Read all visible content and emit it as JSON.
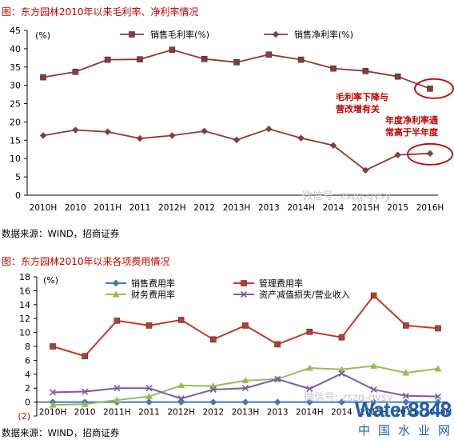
{
  "chart1": {
    "title": "图：东方园林2010年以来毛利率、净利率情况",
    "source": "数据来源：WIND，招商证券",
    "unit_label": "(%)",
    "annotation_1": [
      "毛利率下降与",
      "营改增有关"
    ],
    "annotation_2": [
      "年度净利率通",
      "常高于半年度"
    ],
    "watermark": "微信号: zszq-gysy",
    "colors": {
      "gross": "#8b3a3a",
      "net": "#8b3a3a",
      "annotation": "#c00000",
      "axis": "#000000"
    }
  },
  "chart2": {
    "title": "图：东方园林2010年以来各项费用情况",
    "source": "数据来源：WIND，招商证券",
    "unit_label": "(%)",
    "watermark": "微信号: zszq-gysy",
    "colors": {
      "sales": "#3a7ac9",
      "mgmt": "#c0392b",
      "fin": "#9bbb59",
      "impair": "#7b5aa6"
    }
  },
  "chart_data": [
    {
      "type": "line",
      "title": "东方园林2010年以来毛利率、净利率情况",
      "categories": [
        "2010H",
        "2010",
        "2011H",
        "2011",
        "2012H",
        "2012",
        "2013H",
        "2013",
        "2014H",
        "2014",
        "2015H",
        "2015",
        "2016H"
      ],
      "series": [
        {
          "name": "销售毛利率(%)",
          "marker": "square",
          "values": [
            32.2,
            33.7,
            37.0,
            37.1,
            39.7,
            37.2,
            36.3,
            38.4,
            37.0,
            34.6,
            33.9,
            32.4,
            29.1
          ]
        },
        {
          "name": "销售净利率(%)",
          "marker": "diamond",
          "values": [
            16.3,
            17.8,
            17.3,
            15.5,
            16.3,
            17.5,
            15.1,
            18.1,
            15.6,
            13.6,
            6.8,
            11.0,
            11.4
          ]
        }
      ],
      "ylim": [
        0,
        45
      ],
      "yticks": [
        "0",
        "5",
        "10",
        "15",
        "20",
        "25",
        "30",
        "35",
        "40",
        "45"
      ],
      "grid": false,
      "legend": "top"
    },
    {
      "type": "line",
      "title": "东方园林2010年以来各项费用情况",
      "categories": [
        "2010H",
        "2010",
        "2011H",
        "2011",
        "2012H",
        "2012",
        "2013H",
        "2013",
        "2014H",
        "2014",
        "2015H",
        "2015",
        "2016H"
      ],
      "series": [
        {
          "name": "销售费用率",
          "marker": "diamond",
          "values": [
            0,
            0,
            0,
            0,
            0,
            0,
            0,
            0,
            0,
            0,
            0,
            0,
            0
          ]
        },
        {
          "name": "管理费用率",
          "marker": "square",
          "values": [
            8.0,
            6.6,
            11.7,
            11.0,
            11.8,
            9.0,
            11.0,
            8.3,
            10.1,
            9.3,
            15.3,
            11.0,
            10.6
          ]
        },
        {
          "name": "财务费用率",
          "marker": "triangle",
          "values": [
            -0.4,
            -0.3,
            0.3,
            0.8,
            2.4,
            2.3,
            3.1,
            3.3,
            4.9,
            4.7,
            5.2,
            4.2,
            4.8
          ]
        },
        {
          "name": "资产减值损失/营业收入",
          "marker": "x",
          "values": [
            1.4,
            1.5,
            2.0,
            2.0,
            0.5,
            1.8,
            2.0,
            3.3,
            1.9,
            4.1,
            1.8,
            0.9,
            0.8
          ]
        }
      ],
      "ylim": [
        -2,
        18
      ],
      "yticks": [
        "(2)",
        "0",
        "2",
        "4",
        "6",
        "8",
        "10",
        "12",
        "14",
        "16",
        "18"
      ],
      "grid": false,
      "legend": "top"
    }
  ],
  "brand": {
    "main": "Water8848",
    "sub": "中国水业网"
  }
}
